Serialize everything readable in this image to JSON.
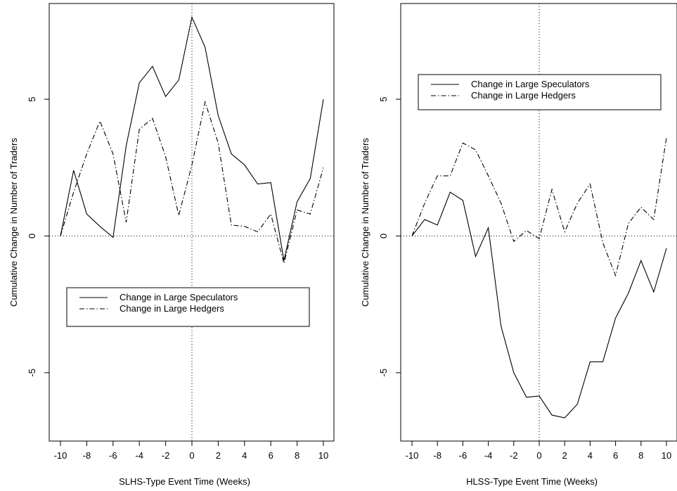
{
  "chart_data": [
    {
      "type": "line",
      "xlabel": "SLHS-Type Event Time (Weeks)",
      "ylabel": "Cumulative Change in Number of Traders",
      "xlim": [
        -10,
        10
      ],
      "ylim": [
        -7.5,
        8.5
      ],
      "x_ticks": [
        -10,
        -8,
        -6,
        -4,
        -2,
        0,
        2,
        4,
        6,
        8,
        10
      ],
      "y_ticks": [
        -5,
        0,
        5
      ],
      "zero_lines": true,
      "legend_position": "lower-center",
      "x": [
        -10,
        -9,
        -8,
        -7,
        -6,
        -5,
        -4,
        -3,
        -2,
        -1,
        0,
        1,
        2,
        3,
        4,
        5,
        6,
        7,
        8,
        9,
        10
      ],
      "series": [
        {
          "name": "Change in Large Speculators",
          "line_style": "solid",
          "values": [
            0,
            2.4,
            0.8,
            0.35,
            -0.05,
            3.3,
            5.6,
            6.2,
            5.1,
            5.7,
            8.0,
            6.9,
            4.4,
            3.0,
            2.6,
            1.9,
            1.95,
            -0.9,
            1.25,
            2.1,
            5.0
          ]
        },
        {
          "name": "Change in Large Hedgers",
          "line_style": "dashdot",
          "values": [
            0,
            1.6,
            3.0,
            4.2,
            3.0,
            0.5,
            3.9,
            4.3,
            2.9,
            0.75,
            2.6,
            4.9,
            3.4,
            0.4,
            0.35,
            0.15,
            0.8,
            -1.0,
            0.95,
            0.8,
            2.5
          ]
        }
      ]
    },
    {
      "type": "line",
      "xlabel": "HLSS-Type Event Time (Weeks)",
      "ylabel": "Cumulative Change in Number of Traders",
      "xlim": [
        -10,
        10
      ],
      "ylim": [
        -7.5,
        8.5
      ],
      "x_ticks": [
        -10,
        -8,
        -6,
        -4,
        -2,
        0,
        2,
        4,
        6,
        8,
        10
      ],
      "y_ticks": [
        -5,
        0,
        5
      ],
      "zero_lines": true,
      "legend_position": "upper-center",
      "x": [
        -10,
        -9,
        -8,
        -7,
        -6,
        -5,
        -4,
        -3,
        -2,
        -1,
        0,
        1,
        2,
        3,
        4,
        5,
        6,
        7,
        8,
        9,
        10
      ],
      "series": [
        {
          "name": "Change in Large Speculators",
          "line_style": "solid",
          "values": [
            0,
            0.6,
            0.4,
            1.6,
            1.3,
            -0.75,
            0.3,
            -3.3,
            -5.0,
            -5.9,
            -5.85,
            -6.55,
            -6.65,
            -6.15,
            -4.6,
            -4.6,
            -3.0,
            -2.1,
            -0.9,
            -2.05,
            -0.45
          ]
        },
        {
          "name": "Change in Large Hedgers",
          "line_style": "dashdot",
          "values": [
            0,
            1.2,
            2.2,
            2.2,
            3.4,
            3.15,
            2.2,
            1.2,
            -0.2,
            0.2,
            -0.1,
            1.7,
            0.15,
            1.2,
            1.9,
            -0.25,
            -1.45,
            0.45,
            1.05,
            0.6,
            3.6
          ]
        }
      ]
    }
  ]
}
